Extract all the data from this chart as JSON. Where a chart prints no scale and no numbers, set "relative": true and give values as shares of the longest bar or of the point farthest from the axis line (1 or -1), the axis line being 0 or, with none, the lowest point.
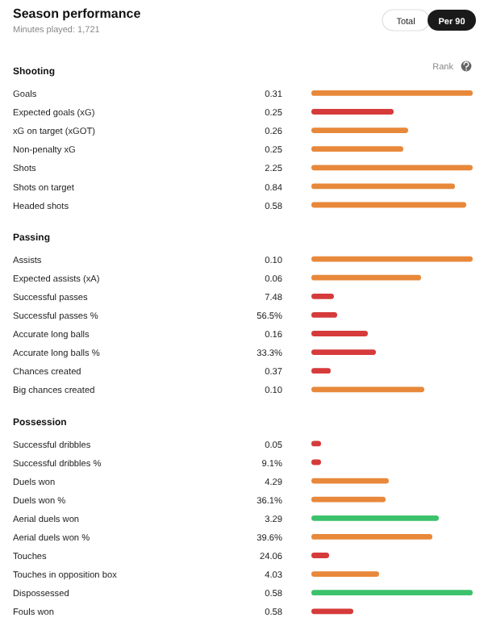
{
  "chart_data": [
    {
      "type": "other",
      "title": "Season performance",
      "subtitle": "Minutes played: 1,721",
      "annotations": [
        "Total",
        "Per 90",
        "Rank"
      ]
    },
    {
      "type": "bar",
      "orientation": "horizontal",
      "relative": true,
      "title": "Shooting",
      "categories": [
        "Goals",
        "Expected goals (xG)",
        "xG on target (xGOT)",
        "Non-penalty xG",
        "Shots",
        "Shots on target",
        "Headed shots"
      ],
      "values": [
        1,
        0.51,
        0.6,
        0.57,
        1,
        0.89,
        0.96
      ],
      "colors": [
        "#e8883a",
        "#d63b3b",
        "#e8883a",
        "#e8883a",
        "#e8883a",
        "#e8883a",
        "#e8883a"
      ],
      "annotations": [
        "0.31",
        "0.25",
        "0.26",
        "0.25",
        "2.25",
        "0.84",
        "0.58"
      ]
    },
    {
      "type": "bar",
      "orientation": "horizontal",
      "relative": true,
      "title": "Passing",
      "categories": [
        "Assists",
        "Expected assists (xA)",
        "Successful passes",
        "Successful passes %",
        "Accurate long balls",
        "Accurate long balls %",
        "Chances created",
        "Big chances created"
      ],
      "values": [
        1,
        0.68,
        0.14,
        0.16,
        0.35,
        0.4,
        0.12,
        0.7
      ],
      "colors": [
        "#e8883a",
        "#e8883a",
        "#d63b3b",
        "#d63b3b",
        "#d63b3b",
        "#d63b3b",
        "#d63b3b",
        "#e8883a"
      ],
      "annotations": [
        "0.10",
        "0.06",
        "7.48",
        "56.5%",
        "0.16",
        "33.3%",
        "0.37",
        "0.10"
      ]
    },
    {
      "type": "bar",
      "orientation": "horizontal",
      "relative": true,
      "title": "Possession",
      "categories": [
        "Successful dribbles",
        "Successful dribbles %",
        "Duels won",
        "Duels won %",
        "Aerial duels won",
        "Aerial duels won %",
        "Touches",
        "Touches in opposition box",
        "Dispossessed",
        "Fouls won"
      ],
      "values": [
        0.06,
        0.06,
        0.48,
        0.46,
        0.79,
        0.75,
        0.11,
        0.42,
        1,
        0.26
      ],
      "colors": [
        "#d63b3b",
        "#d63b3b",
        "#e8883a",
        "#e8883a",
        "#3cc26b",
        "#e8883a",
        "#d63b3b",
        "#e8883a",
        "#3cc26b",
        "#d63b3b"
      ],
      "annotations": [
        "0.05",
        "9.1%",
        "4.29",
        "36.1%",
        "3.29",
        "39.6%",
        "24.06",
        "4.03",
        "0.58",
        "0.58"
      ]
    }
  ]
}
